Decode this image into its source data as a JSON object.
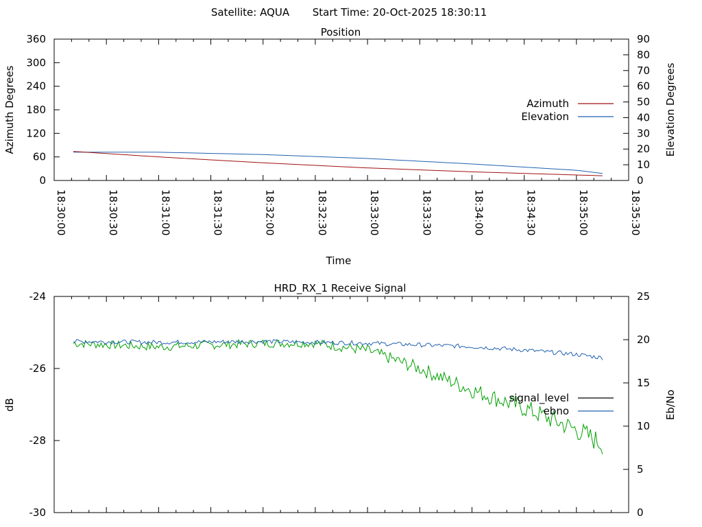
{
  "header": {
    "satellite_label": "Satellite: AQUA",
    "start_time_label": "Start Time: 20-Oct-2025 18:30:11"
  },
  "colors": {
    "azimuth": "#a01010",
    "elevation": "#2060b0",
    "signal_level_legend": "#000000",
    "signal_level_line": "#00a000",
    "ebno": "#2060b0"
  },
  "chart_data": [
    {
      "type": "line",
      "title": "Position",
      "xlabel": "Time",
      "ylabel": "Azimuth Degrees",
      "y2label": "Elevation Degrees",
      "ylim": [
        0,
        360
      ],
      "y2lim": [
        0,
        90
      ],
      "yticks": [
        "0",
        "60",
        "120",
        "180",
        "240",
        "300",
        "360"
      ],
      "y2ticks": [
        "0",
        "10",
        "20",
        "30",
        "40",
        "50",
        "60",
        "70",
        "80",
        "90"
      ],
      "xlim": [
        "18:30:00",
        "18:35:30"
      ],
      "xticks": [
        "18:30:00",
        "18:30:30",
        "18:31:00",
        "18:31:30",
        "18:32:00",
        "18:32:30",
        "18:33:00",
        "18:33:30",
        "18:34:00",
        "18:34:30",
        "18:35:00",
        "18:35:30"
      ],
      "legend": "right",
      "series": [
        {
          "name": "Azimuth",
          "axis": "y",
          "x": [
            "18:30:11",
            "18:31:00",
            "18:32:00",
            "18:33:00",
            "18:34:00",
            "18:35:00",
            "18:35:15"
          ],
          "values": [
            74,
            60,
            45,
            32,
            22,
            14,
            12
          ]
        },
        {
          "name": "Elevation",
          "axis": "y2",
          "x": [
            "18:30:11",
            "18:31:00",
            "18:32:00",
            "18:33:00",
            "18:34:00",
            "18:35:00",
            "18:35:15"
          ],
          "values": [
            18,
            18,
            16.5,
            14,
            10.5,
            6.5,
            4.5
          ]
        }
      ]
    },
    {
      "type": "line",
      "title": "HRD_RX_1 Receive Signal",
      "ylabel": "dB",
      "y2label": "Eb/No",
      "ylim": [
        -30,
        -24
      ],
      "y2lim": [
        0,
        25
      ],
      "yticks": [
        "-30",
        "-28",
        "-26",
        "-24"
      ],
      "y2ticks": [
        "0",
        "5",
        "10",
        "15",
        "20",
        "25"
      ],
      "legend": "right",
      "series": [
        {
          "name": "signal_level",
          "axis": "y",
          "x": [
            "18:30:11",
            "18:31:00",
            "18:31:30",
            "18:32:00",
            "18:32:30",
            "18:33:00",
            "18:33:30",
            "18:34:00",
            "18:34:30",
            "18:35:00",
            "18:35:15"
          ],
          "values": [
            -25.3,
            -25.4,
            -25.35,
            -25.3,
            -25.3,
            -25.5,
            -26.0,
            -26.6,
            -27.1,
            -27.7,
            -28.1
          ]
        },
        {
          "name": "ebno",
          "axis": "y2",
          "x": [
            "18:30:11",
            "18:31:00",
            "18:32:00",
            "18:33:00",
            "18:33:30",
            "18:34:00",
            "18:34:30",
            "18:35:00",
            "18:35:15"
          ],
          "values": [
            19.8,
            19.7,
            19.8,
            19.6,
            19.4,
            19.2,
            18.8,
            18.3,
            17.9
          ]
        }
      ]
    }
  ]
}
